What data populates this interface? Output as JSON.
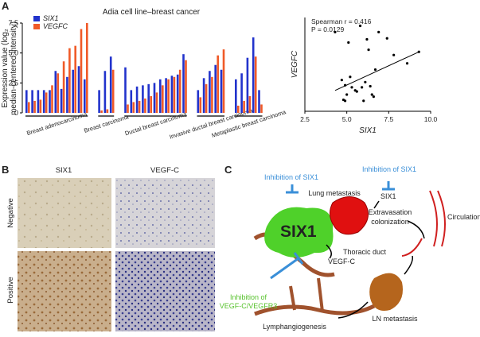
{
  "panels": [
    "A",
    "B",
    "C"
  ],
  "chart_data": [
    {
      "type": "bar",
      "title": "Adia cell line–breast cancer",
      "ylabel": [
        "Expression value (log₂",
        "median-centered intensity)"
      ],
      "categories": [
        "Breast adenocarcinoma",
        "Breast carcinoma",
        "Ductal breast carcinoma",
        "Invasive ductal breast carcinoma",
        "Metaplastic breast carcinoma"
      ],
      "series": [
        {
          "name": "SIX1",
          "color": "#2233cc",
          "values": [
            [
              1.9,
              1.9,
              1.9,
              1.9,
              1.9,
              3.5,
              2.0,
              3.0,
              3.6,
              3.9,
              2.8
            ],
            [
              1.9,
              3.5,
              4.7
            ],
            [
              3.8,
              1.9,
              2.2,
              2.3,
              2.4,
              2.5,
              2.8,
              2.9,
              3.1,
              3.2,
              4.9
            ],
            [
              1.9,
              2.9,
              3.5,
              4.0,
              3.6
            ],
            [
              2.8,
              3.3,
              4.6,
              6.3,
              1.9
            ]
          ]
        },
        {
          "name": "VEGFC",
          "color": "#f05a28",
          "values": [
            [
              0.9,
              1.0,
              1.1,
              1.7,
              2.3,
              3.3,
              4.3,
              5.4,
              5.6,
              7.0,
              7.5
            ],
            [
              0.2,
              0.3,
              3.6
            ],
            [
              0.7,
              0.9,
              1.0,
              1.2,
              1.4,
              1.7,
              2.3,
              2.8,
              3.0,
              3.6,
              4.4
            ],
            [
              1.3,
              2.4,
              3.0,
              4.8,
              5.3
            ],
            [
              0.6,
              1.0,
              1.4,
              4.7,
              0.7
            ]
          ]
        }
      ],
      "ylim": [
        0,
        7.5
      ],
      "yticks": [
        0,
        2.5,
        {
          "value": 5,
          "label": "5.0"
        },
        7.5
      ]
    },
    {
      "type": "scatter",
      "xlabel": "SIX1",
      "ylabel": "VEGFC",
      "annotations": [
        "Spearman r = 0.416",
        "P = 0.0129"
      ],
      "x": [
        4.3,
        4.7,
        4.8,
        4.9,
        4.9,
        5.0,
        5.1,
        5.2,
        5.3,
        5.5,
        5.6,
        5.8,
        5.9,
        6.0,
        6.1,
        6.2,
        6.3,
        6.4,
        6.5,
        6.6,
        6.7,
        6.9,
        7.4,
        7.8,
        8.6,
        9.3
      ],
      "y": [
        9.6,
        5.0,
        3.1,
        3.0,
        4.5,
        3.6,
        8.6,
        5.3,
        4.3,
        4.0,
        3.9,
        10.2,
        4.3,
        3.0,
        4.8,
        8.9,
        7.9,
        4.4,
        3.6,
        3.4,
        6.0,
        9.6,
        9.0,
        7.4,
        6.6,
        7.7
      ],
      "trend": {
        "x": [
          4.3,
          9.3
        ],
        "y": [
          4.0,
          7.7
        ]
      },
      "xlim": [
        2.5,
        10
      ],
      "ylim": [
        2,
        11
      ],
      "xticks": [
        2.5,
        {
          "value": 5,
          "label": "5.0"
        },
        7.5,
        {
          "value": 10,
          "label": "10.0"
        }
      ]
    }
  ],
  "histology": {
    "columns": [
      "SIX1",
      "VEGF-C"
    ],
    "rows": [
      "Negative",
      "Positive"
    ]
  },
  "diagram": {
    "inhibition_six1_top": "Inhibition of SIX1",
    "inhibition_six1_left": "Inhibition of SIX1",
    "lung_metastasis": "Lung metastasis",
    "six1_small": "SIX1",
    "extravasation": [
      "Extravasation",
      "colonization"
    ],
    "circulation": "Circulation",
    "six1_big": "SIX1",
    "thoracic_duct": "Thoracic duct",
    "vegfc": "VEGF-C",
    "inhibition_vegfc": [
      "Inhibition of",
      "VEGF-C/VEGFR3"
    ],
    "ln_metastasis": "LN metastasis",
    "lymphangiogenesis": "Lymphangiogenesis"
  }
}
